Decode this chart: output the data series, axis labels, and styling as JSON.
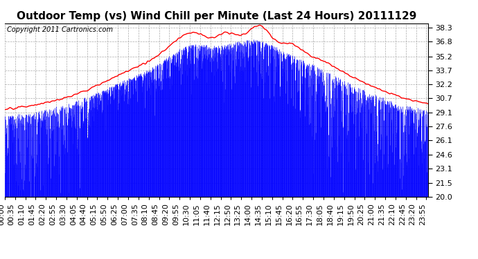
{
  "title": "Outdoor Temp (vs) Wind Chill per Minute (Last 24 Hours) 20111129",
  "copyright": "Copyright 2011 Cartronics.com",
  "yticks": [
    20.0,
    21.5,
    23.1,
    24.6,
    26.1,
    27.6,
    29.1,
    30.7,
    32.2,
    33.7,
    35.2,
    36.8,
    38.3
  ],
  "ymin": 20.0,
  "ymax": 38.8,
  "bg_color": "#ffffff",
  "plot_bg_color": "#ffffff",
  "grid_color": "#aaaaaa",
  "red_line_color": "#ff0000",
  "blue_fill_color": "#0000ff",
  "title_fontsize": 11,
  "copyright_fontsize": 7,
  "tick_fontsize": 8,
  "xtick_rotation": 90,
  "num_points": 1440
}
